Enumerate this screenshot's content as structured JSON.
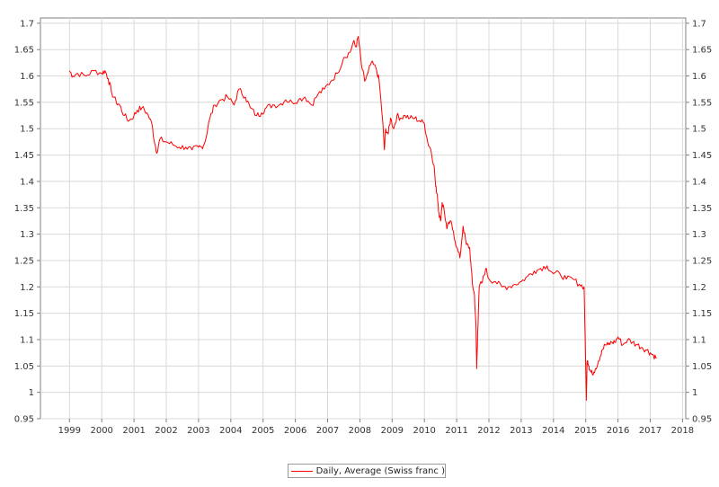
{
  "chart_data": {
    "type": "line",
    "title": "",
    "xlabel": "",
    "ylabel": "",
    "xlim": [
      1998.1,
      2018.1
    ],
    "ylim": [
      0.95,
      1.71
    ],
    "grid": true,
    "legend_placement": "bottom-center",
    "x_ticks": [
      "1999",
      "2000",
      "2001",
      "2002",
      "2003",
      "2004",
      "2005",
      "2006",
      "2007",
      "2008",
      "2009",
      "2010",
      "2011",
      "2012",
      "2013",
      "2014",
      "2015",
      "2016",
      "2017",
      "2018"
    ],
    "y_ticks": [
      "0.95",
      "1",
      "1.05",
      "1.1",
      "1.15",
      "1.2",
      "1.25",
      "1.3",
      "1.35",
      "1.4",
      "1.45",
      "1.5",
      "1.55",
      "1.6",
      "1.65",
      "1.7"
    ],
    "series": [
      {
        "name": "Daily, Average (Swiss franc )",
        "color": "#ff0000",
        "x": [
          1999.0,
          1999.1,
          1999.25,
          1999.5,
          1999.75,
          2000.0,
          2000.1,
          2000.2,
          2000.3,
          2000.45,
          2000.55,
          2000.7,
          2000.85,
          2001.0,
          2001.1,
          2001.25,
          2001.4,
          2001.55,
          2001.65,
          2001.72,
          2001.8,
          2002.0,
          2002.2,
          2002.4,
          2002.6,
          2002.8,
          2003.0,
          2003.1,
          2003.2,
          2003.35,
          2003.5,
          2003.7,
          2003.9,
          2004.1,
          2004.25,
          2004.45,
          2004.6,
          2004.8,
          2004.95,
          2005.1,
          2005.3,
          2005.5,
          2005.7,
          2005.9,
          2006.1,
          2006.3,
          2006.5,
          2006.7,
          2006.9,
          2007.1,
          2007.3,
          2007.5,
          2007.7,
          2007.8,
          2007.88,
          2007.95,
          2008.05,
          2008.15,
          2008.25,
          2008.35,
          2008.5,
          2008.6,
          2008.7,
          2008.76,
          2008.8,
          2008.88,
          2008.95,
          2009.05,
          2009.15,
          2009.25,
          2009.4,
          2009.55,
          2009.7,
          2009.85,
          2010.0,
          2010.1,
          2010.2,
          2010.3,
          2010.35,
          2010.4,
          2010.45,
          2010.5,
          2010.55,
          2010.6,
          2010.7,
          2010.8,
          2010.9,
          2011.0,
          2011.1,
          2011.2,
          2011.3,
          2011.4,
          2011.45,
          2011.5,
          2011.55,
          2011.6,
          2011.62,
          2011.65,
          2011.7,
          2011.8,
          2011.9,
          2012.0,
          2012.2,
          2012.4,
          2012.6,
          2012.8,
          2013.0,
          2013.2,
          2013.4,
          2013.6,
          2013.8,
          2014.0,
          2014.2,
          2014.4,
          2014.6,
          2014.8,
          2014.95,
          2015.02,
          2015.04,
          2015.06,
          2015.1,
          2015.15,
          2015.2,
          2015.3,
          2015.4,
          2015.5,
          2015.6,
          2015.7,
          2015.8,
          2015.9,
          2016.0,
          2016.15,
          2016.3,
          2016.45,
          2016.6,
          2016.75,
          2016.9,
          2017.0,
          2017.1,
          2017.2
        ],
        "values": [
          1.61,
          1.6,
          1.605,
          1.6,
          1.61,
          1.605,
          1.61,
          1.595,
          1.57,
          1.55,
          1.545,
          1.525,
          1.515,
          1.525,
          1.535,
          1.54,
          1.53,
          1.51,
          1.47,
          1.455,
          1.48,
          1.475,
          1.47,
          1.465,
          1.465,
          1.46,
          1.465,
          1.465,
          1.475,
          1.52,
          1.545,
          1.555,
          1.56,
          1.545,
          1.575,
          1.56,
          1.54,
          1.525,
          1.53,
          1.54,
          1.545,
          1.545,
          1.555,
          1.55,
          1.555,
          1.56,
          1.545,
          1.565,
          1.575,
          1.59,
          1.605,
          1.635,
          1.645,
          1.665,
          1.655,
          1.675,
          1.62,
          1.59,
          1.605,
          1.625,
          1.615,
          1.59,
          1.52,
          1.46,
          1.5,
          1.49,
          1.52,
          1.5,
          1.525,
          1.52,
          1.525,
          1.52,
          1.52,
          1.515,
          1.51,
          1.475,
          1.46,
          1.43,
          1.39,
          1.375,
          1.34,
          1.325,
          1.36,
          1.35,
          1.31,
          1.325,
          1.305,
          1.275,
          1.255,
          1.315,
          1.28,
          1.275,
          1.235,
          1.2,
          1.185,
          1.12,
          1.045,
          1.11,
          1.2,
          1.21,
          1.235,
          1.215,
          1.21,
          1.2,
          1.2,
          1.205,
          1.21,
          1.22,
          1.23,
          1.235,
          1.24,
          1.225,
          1.225,
          1.215,
          1.215,
          1.205,
          1.2,
          0.985,
          1.055,
          1.06,
          1.05,
          1.04,
          1.035,
          1.045,
          1.06,
          1.08,
          1.09,
          1.09,
          1.095,
          1.095,
          1.105,
          1.09,
          1.1,
          1.095,
          1.09,
          1.085,
          1.08,
          1.075,
          1.07,
          1.065
        ]
      }
    ]
  }
}
